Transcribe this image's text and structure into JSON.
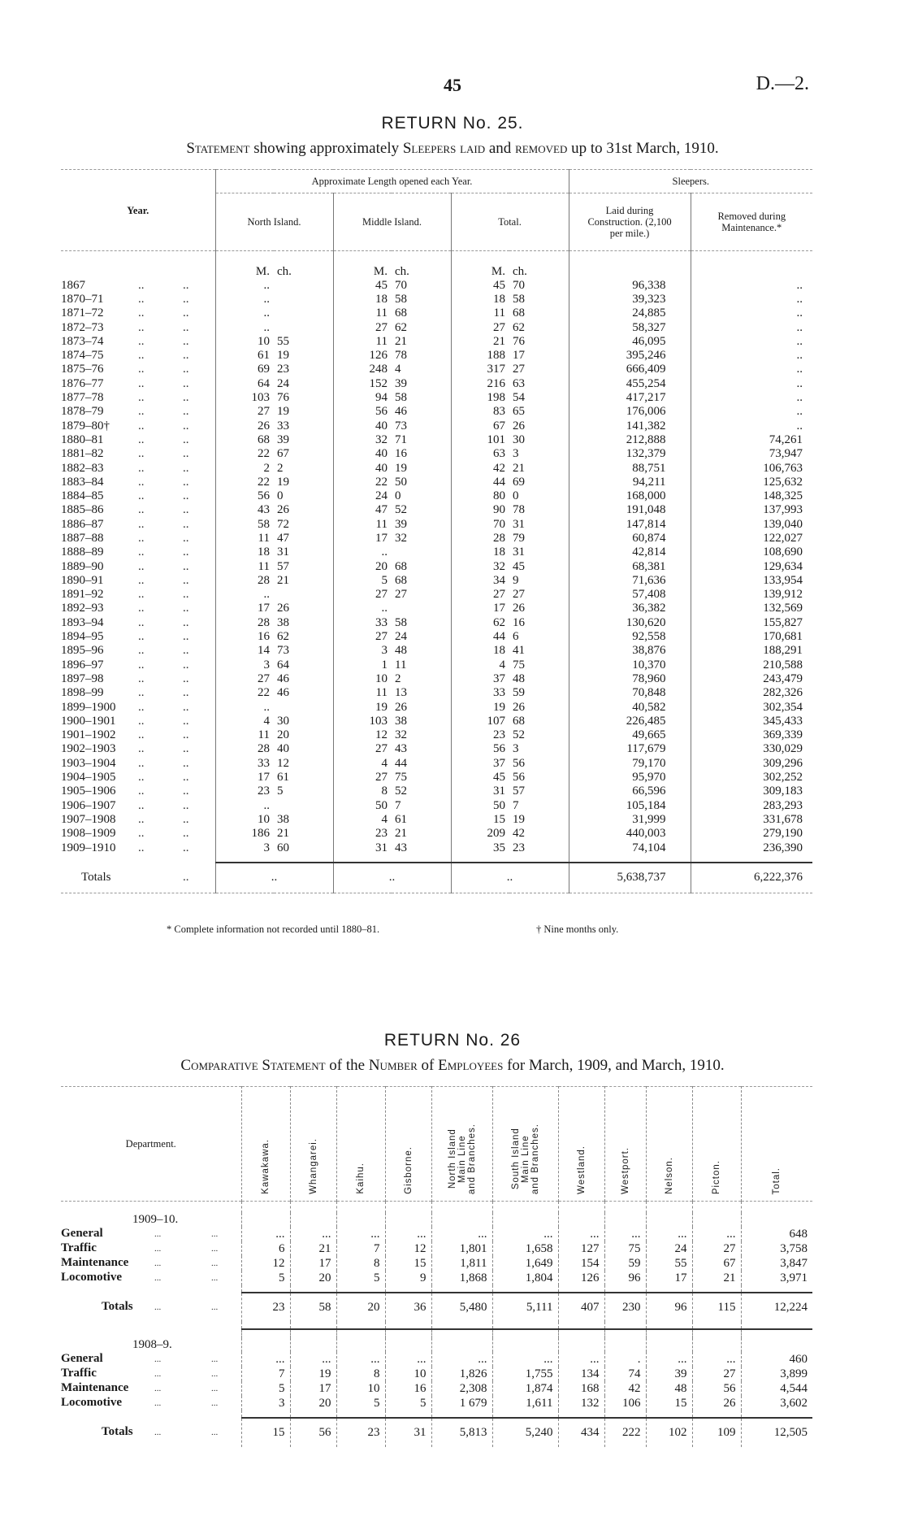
{
  "header": {
    "page_number": "45",
    "doc_ref": "D.—2."
  },
  "return25": {
    "title": "RETURN No. 25.",
    "subtitle_parts": [
      "Statement",
      " showing approximately ",
      "Sleepers laid",
      " and ",
      "removed",
      " up to 31st March, 1910."
    ],
    "headers": {
      "year": "Year.",
      "approx_group": "Approximate Length opened each Year.",
      "sleepers_group": "Sleepers.",
      "north_island": "North Island.",
      "middle_island": "Middle Island.",
      "total": "Total.",
      "laid": "Laid during Construction. (2,100 per mile.)",
      "removed": "Removed during Maintenance.*",
      "unit_m": "M.",
      "unit_ch": "ch."
    },
    "rows": [
      [
        "1867",
        "..",
        "",
        "45",
        "70",
        "45",
        "70",
        "96,338",
        ".."
      ],
      [
        "1870–71",
        "..",
        "",
        "18",
        "58",
        "18",
        "58",
        "39,323",
        ".."
      ],
      [
        "1871–72",
        "..",
        "",
        "11",
        "68",
        "11",
        "68",
        "24,885",
        ".."
      ],
      [
        "1872–73",
        "..",
        "",
        "27",
        "62",
        "27",
        "62",
        "58,327",
        ".."
      ],
      [
        "1873–74",
        "10",
        "55",
        "11",
        "21",
        "21",
        "76",
        "46,095",
        ".."
      ],
      [
        "1874–75",
        "61",
        "19",
        "126",
        "78",
        "188",
        "17",
        "395,246",
        ".."
      ],
      [
        "1875–76",
        "69",
        "23",
        "248",
        "4",
        "317",
        "27",
        "666,409",
        ".."
      ],
      [
        "1876–77",
        "64",
        "24",
        "152",
        "39",
        "216",
        "63",
        "455,254",
        ".."
      ],
      [
        "1877–78",
        "103",
        "76",
        "94",
        "58",
        "198",
        "54",
        "417,217",
        ".."
      ],
      [
        "1878–79",
        "27",
        "19",
        "56",
        "46",
        "83",
        "65",
        "176,006",
        ".."
      ],
      [
        "1879–80†",
        "26",
        "33",
        "40",
        "73",
        "67",
        "26",
        "141,382",
        ".."
      ],
      [
        "1880–81",
        "68",
        "39",
        "32",
        "71",
        "101",
        "30",
        "212,888",
        "74,261"
      ],
      [
        "1881–82",
        "22",
        "67",
        "40",
        "16",
        "63",
        "3",
        "132,379",
        "73,947"
      ],
      [
        "1882–83",
        "2",
        "2",
        "40",
        "19",
        "42",
        "21",
        "88,751",
        "106,763"
      ],
      [
        "1883–84",
        "22",
        "19",
        "22",
        "50",
        "44",
        "69",
        "94,211",
        "125,632"
      ],
      [
        "1884–85",
        "56",
        "0",
        "24",
        "0",
        "80",
        "0",
        "168,000",
        "148,325"
      ],
      [
        "1885–86",
        "43",
        "26",
        "47",
        "52",
        "90",
        "78",
        "191,048",
        "137,993"
      ],
      [
        "1886–87",
        "58",
        "72",
        "11",
        "39",
        "70",
        "31",
        "147,814",
        "139,040"
      ],
      [
        "1887–88",
        "11",
        "47",
        "17",
        "32",
        "28",
        "79",
        "60,874",
        "122,027"
      ],
      [
        "1888–89",
        "18",
        "31",
        "..",
        "",
        "18",
        "31",
        "42,814",
        "108,690"
      ],
      [
        "1889–90",
        "11",
        "57",
        "20",
        "68",
        "32",
        "45",
        "68,381",
        "129,634"
      ],
      [
        "1890–91",
        "28",
        "21",
        "5",
        "68",
        "34",
        "9",
        "71,636",
        "133,954"
      ],
      [
        "1891–92",
        "..",
        "",
        "27",
        "27",
        "27",
        "27",
        "57,408",
        "139,912"
      ],
      [
        "1892–93",
        "17",
        "26",
        "..",
        "",
        "17",
        "26",
        "36,382",
        "132,569"
      ],
      [
        "1893–94",
        "28",
        "38",
        "33",
        "58",
        "62",
        "16",
        "130,620",
        "155,827"
      ],
      [
        "1894–95",
        "16",
        "62",
        "27",
        "24",
        "44",
        "6",
        "92,558",
        "170,681"
      ],
      [
        "1895–96",
        "14",
        "73",
        "3",
        "48",
        "18",
        "41",
        "38,876",
        "188,291"
      ],
      [
        "1896–97",
        "3",
        "64",
        "1",
        "11",
        "4",
        "75",
        "10,370",
        "210,588"
      ],
      [
        "1897–98",
        "27",
        "46",
        "10",
        "2",
        "37",
        "48",
        "78,960",
        "243,479"
      ],
      [
        "1898–99",
        "22",
        "46",
        "11",
        "13",
        "33",
        "59",
        "70,848",
        "282,326"
      ],
      [
        "1899–1900",
        "..",
        "",
        "19",
        "26",
        "19",
        "26",
        "40,582",
        "302,354"
      ],
      [
        "1900–1901",
        "4",
        "30",
        "103",
        "38",
        "107",
        "68",
        "226,485",
        "345,433"
      ],
      [
        "1901–1902",
        "11",
        "20",
        "12",
        "32",
        "23",
        "52",
        "49,665",
        "369,339"
      ],
      [
        "1902–1903",
        "28",
        "40",
        "27",
        "43",
        "56",
        "3",
        "117,679",
        "330,029"
      ],
      [
        "1903–1904",
        "33",
        "12",
        "4",
        "44",
        "37",
        "56",
        "79,170",
        "309,296"
      ],
      [
        "1904–1905",
        "17",
        "61",
        "27",
        "75",
        "45",
        "56",
        "95,970",
        "302,252"
      ],
      [
        "1905–1906",
        "23",
        "5",
        "8",
        "52",
        "31",
        "57",
        "66,596",
        "309,183"
      ],
      [
        "1906–1907",
        "..",
        "",
        "50",
        "7",
        "50",
        "7",
        "105,184",
        "283,293"
      ],
      [
        "1907–1908",
        "10",
        "38",
        "4",
        "61",
        "15",
        "19",
        "31,999",
        "331,678"
      ],
      [
        "1908–1909",
        "186",
        "21",
        "23",
        "21",
        "209",
        "42",
        "440,003",
        "279,190"
      ],
      [
        "1909–1910",
        "3",
        "60",
        "31",
        "43",
        "35",
        "23",
        "74,104",
        "236,390"
      ]
    ],
    "row_filler": "..",
    "totals": {
      "label": "Totals",
      "north_island": "..",
      "middle_island": "..",
      "total": "..",
      "laid": "5,638,737",
      "removed": "6,222,376"
    },
    "footnotes": [
      "* Complete information not recorded until 1880–81.",
      "† Nine months only."
    ]
  },
  "return26": {
    "title": "RETURN No. 26",
    "subtitle_parts": [
      "Comparative Statement",
      " of the ",
      "Number",
      " of ",
      "Employees",
      " for March, 1909, and March, 1910."
    ],
    "department_header": "Department.",
    "columns": [
      "Kawakawa.",
      "Whangarei.",
      "Kaihu.",
      "Gisborne.",
      "North Island\nMain Line\nand Branches.",
      "South Island\nMain Line\nand Branches.",
      "Westland.",
      "Westport.",
      "Nelson.",
      "Picton.",
      "Total."
    ],
    "filler": "...",
    "groups": [
      {
        "year": "1909–10.",
        "rows": [
          {
            "dept": "General",
            "values": [
              "...",
              "...",
              "...",
              "...",
              "...",
              "...",
              "...",
              "...",
              "...",
              "...",
              "648"
            ]
          },
          {
            "dept": "Traffic",
            "values": [
              "6",
              "21",
              "7",
              "12",
              "1,801",
              "1,658",
              "127",
              "75",
              "24",
              "27",
              "3,758"
            ]
          },
          {
            "dept": "Maintenance",
            "values": [
              "12",
              "17",
              "8",
              "15",
              "1,811",
              "1,649",
              "154",
              "59",
              "55",
              "67",
              "3,847"
            ]
          },
          {
            "dept": "Locomotive",
            "values": [
              "5",
              "20",
              "5",
              "9",
              "1,868",
              "1,804",
              "126",
              "96",
              "17",
              "21",
              "3,971"
            ]
          }
        ],
        "totals": {
          "label": "Totals",
          "values": [
            "23",
            "58",
            "20",
            "36",
            "5,480",
            "5,111",
            "407",
            "230",
            "96",
            "115",
            "12,224"
          ]
        }
      },
      {
        "year": "1908–9.",
        "rows": [
          {
            "dept": "General",
            "values": [
              "...",
              "...",
              "...",
              "...",
              "...",
              "...",
              "...",
              ".",
              "...",
              "...",
              "460"
            ]
          },
          {
            "dept": "Traffic",
            "values": [
              "7",
              "19",
              "8",
              "10",
              "1,826",
              "1,755",
              "134",
              "74",
              "39",
              "27",
              "3,899"
            ]
          },
          {
            "dept": "Maintenance",
            "values": [
              "5",
              "17",
              "10",
              "16",
              "2,308",
              "1,874",
              "168",
              "42",
              "48",
              "56",
              "4,544"
            ]
          },
          {
            "dept": "Locomotive",
            "values": [
              "3",
              "20",
              "5",
              "5",
              "1 679",
              "1,611",
              "132",
              "106",
              "15",
              "26",
              "3,602"
            ]
          }
        ],
        "totals": {
          "label": "Totals",
          "values": [
            "15",
            "56",
            "23",
            "31",
            "5,813",
            "5,240",
            "434",
            "222",
            "102",
            "109",
            "12,505"
          ]
        }
      }
    ]
  }
}
